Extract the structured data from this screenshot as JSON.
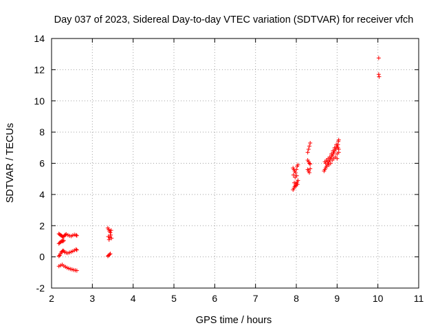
{
  "chart_data": {
    "type": "scatter",
    "title": "Day 037 of 2023, Sidereal Day-to-day VTEC variation (SDTVAR) for receiver vfch",
    "xlabel": "GPS time / hours",
    "ylabel": "SDTVAR / TECUs",
    "xlim": [
      2,
      11
    ],
    "ylim": [
      -2,
      14
    ],
    "x_ticks": [
      2,
      3,
      4,
      5,
      6,
      7,
      8,
      9,
      10,
      11
    ],
    "y_ticks": [
      -2,
      0,
      2,
      4,
      6,
      8,
      10,
      12,
      14
    ],
    "grid": true,
    "legend": "none",
    "marker": "plus",
    "color": "#ff0000",
    "series": [
      {
        "points": [
          [
            2.18,
            1.48
          ],
          [
            2.2,
            1.44
          ],
          [
            2.22,
            1.4
          ],
          [
            2.24,
            1.36
          ],
          [
            2.26,
            1.32
          ],
          [
            2.28,
            1.28
          ],
          [
            2.3,
            1.3
          ],
          [
            2.32,
            1.38
          ],
          [
            2.34,
            1.42
          ],
          [
            2.36,
            1.45
          ],
          [
            2.4,
            1.4
          ],
          [
            2.44,
            1.35
          ],
          [
            2.48,
            1.33
          ],
          [
            2.52,
            1.38
          ],
          [
            2.56,
            1.42
          ],
          [
            2.6,
            1.4
          ],
          [
            2.62,
            1.36
          ],
          [
            2.18,
            0.85
          ],
          [
            2.2,
            0.9
          ],
          [
            2.22,
            0.95
          ],
          [
            2.24,
            1.0
          ],
          [
            2.26,
            1.02
          ],
          [
            2.28,
            1.0
          ],
          [
            2.3,
            1.05
          ],
          [
            2.18,
            0.05
          ],
          [
            2.2,
            0.1
          ],
          [
            2.22,
            0.2
          ],
          [
            2.24,
            0.3
          ],
          [
            2.26,
            0.35
          ],
          [
            2.28,
            0.4
          ],
          [
            2.3,
            0.38
          ],
          [
            2.32,
            0.3
          ],
          [
            2.36,
            0.26
          ],
          [
            2.4,
            0.24
          ],
          [
            2.44,
            0.28
          ],
          [
            2.48,
            0.32
          ],
          [
            2.52,
            0.36
          ],
          [
            2.56,
            0.42
          ],
          [
            2.6,
            0.48
          ],
          [
            2.62,
            0.44
          ],
          [
            2.18,
            -0.6
          ],
          [
            2.22,
            -0.55
          ],
          [
            2.26,
            -0.5
          ],
          [
            2.3,
            -0.58
          ],
          [
            2.34,
            -0.64
          ],
          [
            2.38,
            -0.7
          ],
          [
            2.42,
            -0.74
          ],
          [
            2.46,
            -0.78
          ],
          [
            2.5,
            -0.8
          ],
          [
            2.54,
            -0.84
          ],
          [
            2.58,
            -0.86
          ],
          [
            2.62,
            -0.88
          ],
          [
            3.38,
            1.85
          ],
          [
            3.4,
            1.75
          ],
          [
            3.42,
            1.65
          ],
          [
            3.44,
            1.55
          ],
          [
            3.46,
            1.7
          ],
          [
            3.45,
            1.4
          ],
          [
            3.43,
            1.25
          ],
          [
            3.41,
            1.1
          ],
          [
            3.39,
            1.3
          ],
          [
            3.47,
            1.2
          ],
          [
            3.38,
            0.05
          ],
          [
            3.4,
            0.1
          ],
          [
            3.42,
            0.15
          ],
          [
            3.44,
            0.2
          ],
          [
            7.92,
            5.7
          ],
          [
            7.94,
            5.6
          ],
          [
            7.96,
            5.5
          ],
          [
            7.98,
            5.4
          ],
          [
            8.0,
            5.6
          ],
          [
            8.02,
            5.8
          ],
          [
            8.04,
            5.9
          ],
          [
            7.93,
            5.25
          ],
          [
            7.97,
            5.1
          ],
          [
            8.01,
            5.2
          ],
          [
            7.92,
            4.3
          ],
          [
            7.94,
            4.4
          ],
          [
            7.96,
            4.5
          ],
          [
            7.98,
            4.6
          ],
          [
            8.0,
            4.7
          ],
          [
            8.02,
            4.8
          ],
          [
            8.04,
            4.9
          ],
          [
            7.95,
            4.75
          ],
          [
            7.99,
            4.55
          ],
          [
            8.03,
            4.65
          ],
          [
            8.28,
            6.7
          ],
          [
            8.3,
            6.9
          ],
          [
            8.32,
            7.1
          ],
          [
            8.34,
            7.3
          ],
          [
            8.28,
            6.2
          ],
          [
            8.3,
            6.1
          ],
          [
            8.32,
            6.0
          ],
          [
            8.34,
            5.95
          ],
          [
            8.28,
            5.6
          ],
          [
            8.3,
            5.5
          ],
          [
            8.32,
            5.4
          ],
          [
            8.34,
            5.65
          ],
          [
            8.68,
            5.5
          ],
          [
            8.7,
            5.6
          ],
          [
            8.72,
            5.7
          ],
          [
            8.74,
            5.8
          ],
          [
            8.76,
            5.9
          ],
          [
            8.78,
            6.0
          ],
          [
            8.8,
            6.1
          ],
          [
            8.82,
            6.2
          ],
          [
            8.84,
            6.3
          ],
          [
            8.86,
            6.4
          ],
          [
            8.88,
            6.5
          ],
          [
            8.9,
            6.6
          ],
          [
            8.92,
            6.7
          ],
          [
            8.94,
            6.8
          ],
          [
            8.96,
            6.9
          ],
          [
            8.98,
            7.0
          ],
          [
            9.0,
            7.1
          ],
          [
            9.02,
            7.2
          ],
          [
            9.03,
            7.4
          ],
          [
            9.04,
            7.5
          ],
          [
            8.7,
            6.1
          ],
          [
            8.74,
            6.2
          ],
          [
            8.78,
            6.3
          ],
          [
            8.82,
            6.4
          ],
          [
            8.86,
            6.6
          ],
          [
            8.9,
            6.8
          ],
          [
            8.94,
            7.0
          ],
          [
            8.98,
            7.2
          ],
          [
            9.02,
            7.0
          ],
          [
            9.04,
            6.9
          ],
          [
            8.72,
            6.0
          ],
          [
            8.76,
            6.1
          ],
          [
            8.8,
            5.9
          ],
          [
            8.84,
            6.0
          ],
          [
            8.88,
            6.2
          ],
          [
            8.92,
            6.3
          ],
          [
            8.96,
            6.4
          ],
          [
            9.0,
            6.6
          ],
          [
            9.04,
            6.7
          ],
          [
            9.0,
            6.3
          ],
          [
            10.02,
            12.75
          ],
          [
            10.02,
            11.7
          ],
          [
            10.03,
            11.55
          ]
        ]
      }
    ]
  }
}
